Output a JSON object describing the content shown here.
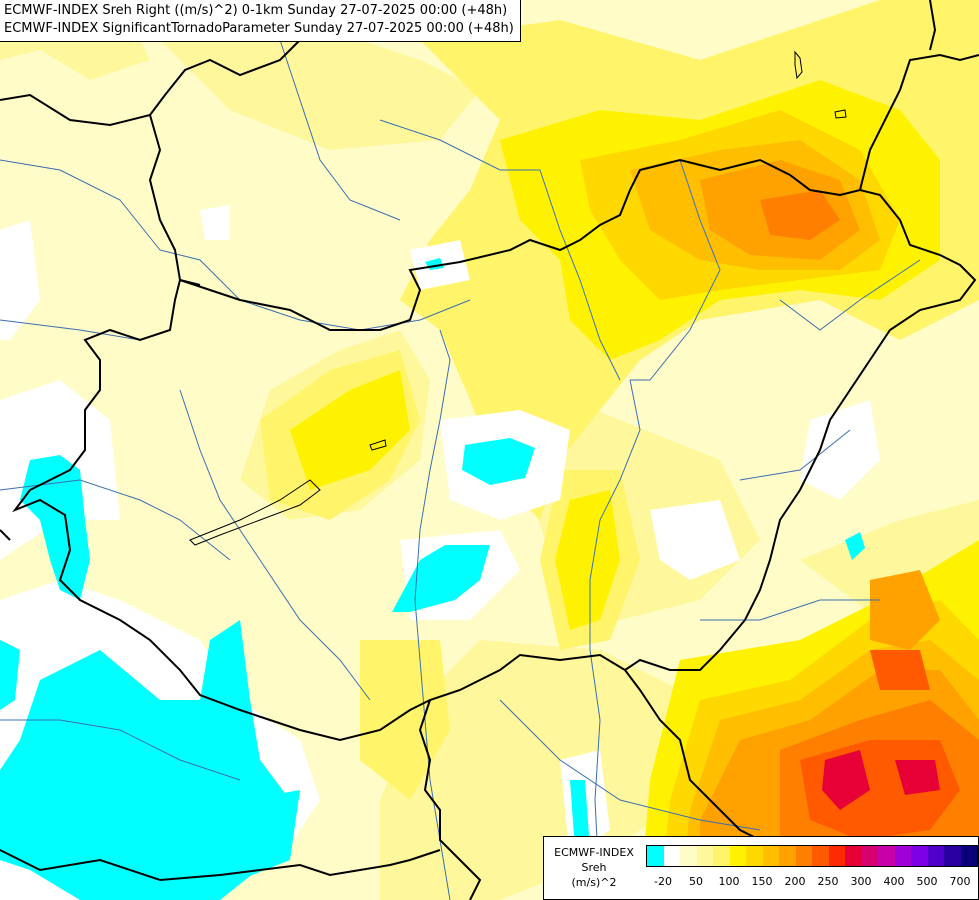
{
  "title": {
    "line1": "ECMWF-INDEX Sreh Right ((m/s)^2) 0-1km Sunday 27-07-2025 00:00 (+48h)",
    "line2": "ECMWF-INDEX SignificantTornadoParameter Sunday 27-07-2025 00:00 (+48h)"
  },
  "legend": {
    "source": "ECMWF-INDEX",
    "variable": "Sreh",
    "unit": "(m/s)^2",
    "colors": [
      "#00ffff",
      "#ffffff",
      "#fffcc8",
      "#fff79c",
      "#fff46a",
      "#fff200",
      "#ffd800",
      "#ffbf00",
      "#ffa200",
      "#ff7f00",
      "#ff5a00",
      "#ff2a00",
      "#e60035",
      "#d60070",
      "#c800a8",
      "#a000d6",
      "#7d00e6",
      "#5000c8",
      "#2800a0",
      "#0a0078"
    ],
    "ticks": [
      "-20",
      "50",
      "100",
      "150",
      "200",
      "250",
      "300",
      "400",
      "500",
      "700"
    ]
  },
  "map": {
    "colors": {
      "cyan": "#00ffff",
      "white": "#ffffff",
      "very_pale": "#fffcc8",
      "pale": "#fff79c",
      "light_yellow": "#fff46a",
      "yellow": "#fff200",
      "gold": "#ffd800",
      "amber": "#ffbf00",
      "orange": "#ffa200",
      "dark_orange": "#ff7f00",
      "red_orange": "#ff5a00",
      "red": "#ff2a00",
      "magenta": "#e60035",
      "border": "#000000",
      "river": "#3a6fb0"
    }
  }
}
